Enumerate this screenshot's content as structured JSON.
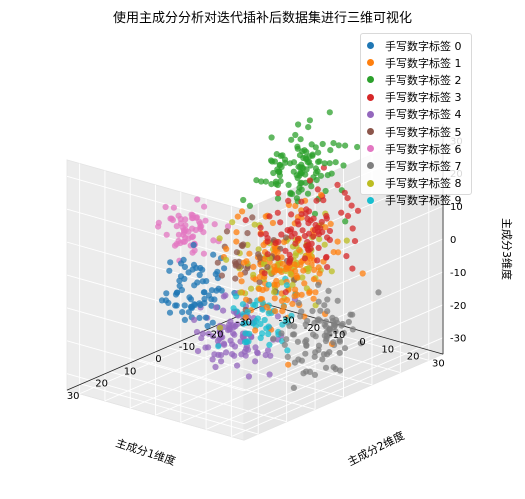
{
  "chart_data": {
    "type": "scatter",
    "title": "使用主成分分析对迭代插补后数据集进行三维可视化",
    "xlabel": "主成分1维度",
    "ylabel": "主成分2维度",
    "zlabel": "主成分3维度",
    "xlim": [
      -35,
      35
    ],
    "ylim": [
      -35,
      35
    ],
    "zlim": [
      -35,
      35
    ],
    "x_ticks": [
      "-30",
      "-20",
      "-10",
      "0",
      "10",
      "20",
      "30"
    ],
    "y_ticks": [
      "-30",
      "-20",
      "-10",
      "0",
      "10",
      "20",
      "30"
    ],
    "z_ticks": [
      "-30",
      "-20",
      "-10",
      "0",
      "10",
      "20",
      "30"
    ],
    "grid": true,
    "legend_position": "top-right",
    "series": [
      {
        "name": "手写数字标签 0",
        "color": "#1f77b4",
        "center": [
          28,
          8,
          2
        ],
        "spread": [
          4,
          5,
          5
        ],
        "n": 70
      },
      {
        "name": "手写数字标签 1",
        "color": "#ff7f0e",
        "center": [
          -2,
          8,
          -3
        ],
        "spread": [
          7,
          7,
          8
        ],
        "n": 140
      },
      {
        "name": "手写数字标签 2",
        "color": "#2ca02c",
        "center": [
          -22,
          -5,
          18
        ],
        "spread": [
          6,
          6,
          6
        ],
        "n": 110
      },
      {
        "name": "手写数字标签 3",
        "color": "#d62728",
        "center": [
          -20,
          0,
          0
        ],
        "spread": [
          6,
          6,
          6
        ],
        "n": 90
      },
      {
        "name": "手写数字标签 4",
        "color": "#9467bd",
        "center": [
          22,
          18,
          -12
        ],
        "spread": [
          6,
          6,
          5
        ],
        "n": 100
      },
      {
        "name": "手写数字标签 5",
        "color": "#8c564b",
        "center": [
          5,
          5,
          0
        ],
        "spread": [
          5,
          5,
          5
        ],
        "n": 40
      },
      {
        "name": "手写数字标签 6",
        "color": "#e377c2",
        "center": [
          32,
          10,
          22
        ],
        "spread": [
          4,
          4,
          4
        ],
        "n": 60
      },
      {
        "name": "手写数字标签 7",
        "color": "#7f7f7f",
        "center": [
          -10,
          15,
          -25
        ],
        "spread": [
          6,
          6,
          5
        ],
        "n": 90
      },
      {
        "name": "手写数字标签 8",
        "color": "#bcbd22",
        "center": [
          0,
          10,
          2
        ],
        "spread": [
          6,
          6,
          6
        ],
        "n": 80
      },
      {
        "name": "手写数字标签 9",
        "color": "#17becf",
        "center": [
          5,
          10,
          -15
        ],
        "spread": [
          5,
          5,
          5
        ],
        "n": 50
      }
    ]
  }
}
